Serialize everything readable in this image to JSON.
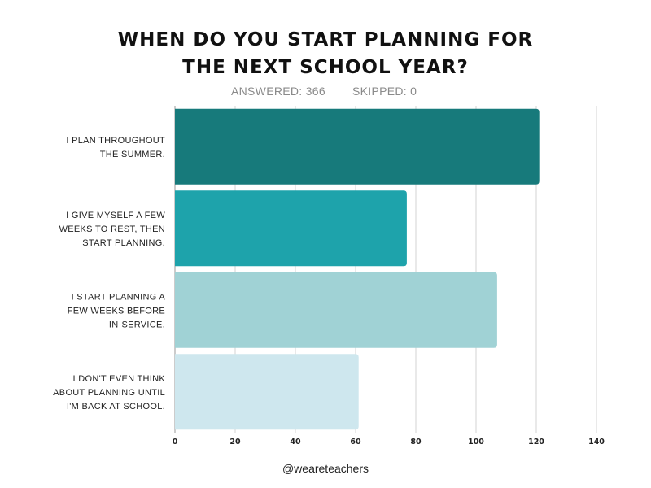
{
  "chart_data": {
    "type": "bar",
    "orientation": "horizontal",
    "title": [
      "WHEN DO YOU START PLANNING FOR",
      "THE NEXT SCHOOL YEAR?"
    ],
    "stats": {
      "answered": "ANSWERED: 366",
      "skipped": "SKIPPED: 0"
    },
    "categories": [
      [
        "I PLAN THROUGHOUT",
        "THE SUMMER."
      ],
      [
        "I GIVE MYSELF A FEW",
        "WEEKS TO REST, THEN",
        "START PLANNING."
      ],
      [
        "I START PLANNING A",
        "FEW WEEKS BEFORE",
        "IN-SERVICE."
      ],
      [
        "I DON'T EVEN THINK",
        "ABOUT PLANNING UNTIL",
        "I'M BACK AT SCHOOL."
      ]
    ],
    "values": [
      121,
      77,
      107,
      61
    ],
    "colors": [
      "#177a7b",
      "#1ea3ab",
      "#a0d2d5",
      "#cee7ee"
    ],
    "xlim": [
      0,
      140
    ],
    "xticks": [
      0,
      20,
      40,
      60,
      80,
      100,
      120,
      140
    ],
    "grid": true,
    "footer": "@weareteachers"
  }
}
